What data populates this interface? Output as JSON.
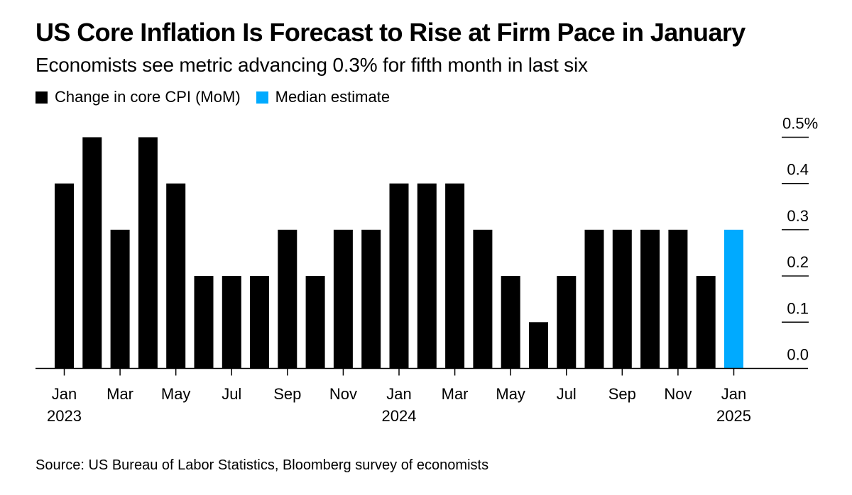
{
  "chart_data": {
    "type": "bar",
    "title": "US Core Inflation Is Forecast to Rise at Firm Pace in January",
    "subtitle": "Economists see metric advancing 0.3% for fifth month in last six",
    "xlabel": "",
    "ylabel": "",
    "ylim": [
      0,
      0.5
    ],
    "grid": false,
    "legend_position": "top-left",
    "y_axis_side": "right",
    "y_ticks": [
      0.0,
      0.1,
      0.2,
      0.3,
      0.4,
      0.5
    ],
    "y_tick_labels": [
      "0.0",
      "0.1",
      "0.2",
      "0.3",
      "0.4",
      "0.5%"
    ],
    "categories": [
      "Jan 2023",
      "Feb 2023",
      "Mar 2023",
      "Apr 2023",
      "May 2023",
      "Jun 2023",
      "Jul 2023",
      "Aug 2023",
      "Sep 2023",
      "Oct 2023",
      "Nov 2023",
      "Dec 2023",
      "Jan 2024",
      "Feb 2024",
      "Mar 2024",
      "Apr 2024",
      "May 2024",
      "Jun 2024",
      "Jul 2024",
      "Aug 2024",
      "Sep 2024",
      "Oct 2024",
      "Nov 2024",
      "Dec 2024",
      "Jan 2025"
    ],
    "x_tick_labels": [
      {
        "index": 0,
        "month": "Jan",
        "year": "2023"
      },
      {
        "index": 2,
        "month": "Mar",
        "year": ""
      },
      {
        "index": 4,
        "month": "May",
        "year": ""
      },
      {
        "index": 6,
        "month": "Jul",
        "year": ""
      },
      {
        "index": 8,
        "month": "Sep",
        "year": ""
      },
      {
        "index": 10,
        "month": "Nov",
        "year": ""
      },
      {
        "index": 12,
        "month": "Jan",
        "year": "2024"
      },
      {
        "index": 14,
        "month": "Mar",
        "year": ""
      },
      {
        "index": 16,
        "month": "May",
        "year": ""
      },
      {
        "index": 18,
        "month": "Jul",
        "year": ""
      },
      {
        "index": 20,
        "month": "Sep",
        "year": ""
      },
      {
        "index": 22,
        "month": "Nov",
        "year": ""
      },
      {
        "index": 24,
        "month": "Jan",
        "year": "2025"
      }
    ],
    "series": [
      {
        "name": "Change in core CPI (MoM)",
        "color": "#000000",
        "values": [
          0.4,
          0.5,
          0.3,
          0.5,
          0.4,
          0.2,
          0.2,
          0.2,
          0.3,
          0.2,
          0.3,
          0.3,
          0.4,
          0.4,
          0.4,
          0.3,
          0.2,
          0.1,
          0.2,
          0.3,
          0.3,
          0.3,
          0.3,
          0.2,
          null
        ]
      },
      {
        "name": "Median estimate",
        "color": "#00aaff",
        "values": [
          null,
          null,
          null,
          null,
          null,
          null,
          null,
          null,
          null,
          null,
          null,
          null,
          null,
          null,
          null,
          null,
          null,
          null,
          null,
          null,
          null,
          null,
          null,
          null,
          0.3
        ]
      }
    ],
    "source": "Source: US Bureau of Labor Statistics, Bloomberg survey of economists"
  }
}
